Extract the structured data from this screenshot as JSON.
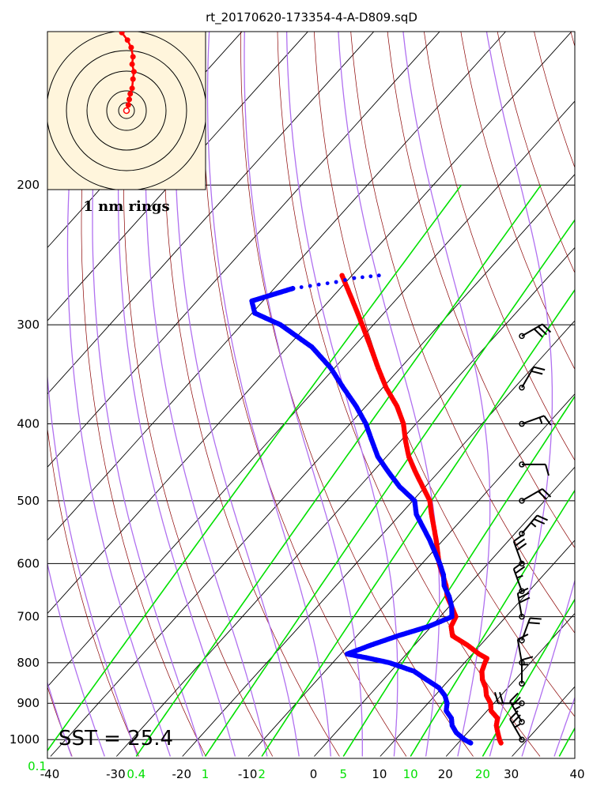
{
  "chart_data": {
    "type": "skew-t",
    "title": "rt_20170620-173354-4-A-D809.sqD",
    "x_axis": {
      "range": [
        -40,
        40
      ],
      "tick_values": [
        -40,
        -30,
        -20,
        -10,
        0,
        10,
        20,
        30,
        40
      ],
      "tick_labels": [
        "-40",
        "-30",
        "-20",
        "-10",
        "0",
        "10",
        "20",
        "30",
        "40"
      ]
    },
    "y_axis": {
      "scale": "log",
      "range": [
        100,
        1050
      ],
      "tick_values": [
        100,
        200,
        300,
        400,
        500,
        600,
        700,
        800,
        900,
        1000
      ],
      "tick_labels": [
        "100",
        "200",
        "300",
        "400",
        "500",
        "600",
        "700",
        "800",
        "900",
        "1000"
      ]
    },
    "mixing_ratio_labels": [
      "0.1",
      "0.4",
      "1",
      "2",
      "5",
      "10",
      "20"
    ],
    "annotation": "SST = 25.4",
    "inset": {
      "label": "1 nm rings",
      "background": "#fff5dc",
      "ring_count": 4
    },
    "colors": {
      "temperature": "#ff0000",
      "dewpoint": "#0000ff",
      "isotherms": "#000000",
      "dry_adiabats": "#8b0000",
      "moist_adiabats": "#b070f0",
      "mixing_ratio": "#00e000",
      "wind_barbs": "#000000"
    },
    "temperature_profile": {
      "name": "temperature",
      "p": [
        1010,
        1000,
        980,
        960,
        940,
        920,
        900,
        880,
        860,
        840,
        820,
        800,
        790,
        780,
        760,
        740,
        720,
        700,
        680,
        660,
        640,
        620,
        600,
        560,
        520,
        500,
        480,
        460,
        440,
        420,
        400,
        380,
        360,
        340,
        320,
        300,
        280,
        260
      ],
      "t": [
        26.5,
        25.8,
        24.6,
        23.4,
        22.6,
        20.6,
        19.5,
        17.8,
        16.6,
        15.0,
        13.8,
        13.1,
        12.8,
        11.0,
        8.0,
        4.5,
        3.0,
        2.4,
        0.4,
        -1.7,
        -3.3,
        -5.3,
        -7.4,
        -11.1,
        -15.3,
        -17.4,
        -20.4,
        -23.5,
        -26.6,
        -29.3,
        -31.9,
        -35.3,
        -39.5,
        -43.4,
        -47.4,
        -51.7,
        -56.4,
        -61.5
      ]
    },
    "dewpoint_profile": {
      "name": "dewpoint",
      "p": [
        1010,
        1000,
        980,
        960,
        940,
        920,
        900,
        880,
        860,
        840,
        820,
        800,
        790,
        780,
        770,
        760,
        740,
        720,
        700,
        680,
        660,
        640,
        620,
        600,
        560,
        520,
        500,
        480,
        460,
        440,
        420,
        400,
        380,
        360,
        340,
        320,
        300,
        290,
        280,
        270,
        265,
        262,
        260
      ],
      "td": [
        21.9,
        20.5,
        18.3,
        16.7,
        15.6,
        13.8,
        12.9,
        11.5,
        9.5,
        6.5,
        3.5,
        -1.4,
        -5.0,
        -9.0,
        -7.8,
        -6.6,
        -3.8,
        -0.4,
        1.8,
        0.4,
        -1.4,
        -3.6,
        -5.2,
        -7.3,
        -12.1,
        -17.6,
        -19.7,
        -23.9,
        -27.6,
        -31.3,
        -34.4,
        -37.6,
        -41.5,
        -46.0,
        -50.6,
        -56.3,
        -64.1,
        -69.6,
        -71.7,
        -67.2,
        -61.5,
        -59.3,
        -55.9
      ]
    },
    "wind_barbs": {
      "p": [
        310,
        360,
        400,
        450,
        500,
        550,
        600,
        650,
        700,
        750,
        800,
        850,
        900,
        950,
        1000
      ],
      "speed_kt": [
        30,
        20,
        15,
        10,
        20,
        25,
        30,
        25,
        30,
        20,
        10,
        15,
        20,
        25,
        25
      ],
      "dir_deg": [
        240,
        210,
        250,
        270,
        240,
        220,
        160,
        160,
        170,
        200,
        170,
        180,
        90,
        150,
        150
      ]
    },
    "hodograph_track": {
      "points_u": [
        0.0,
        0.1,
        0.15,
        0.2,
        0.3,
        0.35,
        0.4,
        0.3,
        0.35,
        0.25,
        0.05,
        -0.25
      ],
      "points_v": [
        0.0,
        0.15,
        0.3,
        0.45,
        0.6,
        0.85,
        1.05,
        1.25,
        1.45,
        1.7,
        1.9,
        2.1
      ]
    }
  }
}
